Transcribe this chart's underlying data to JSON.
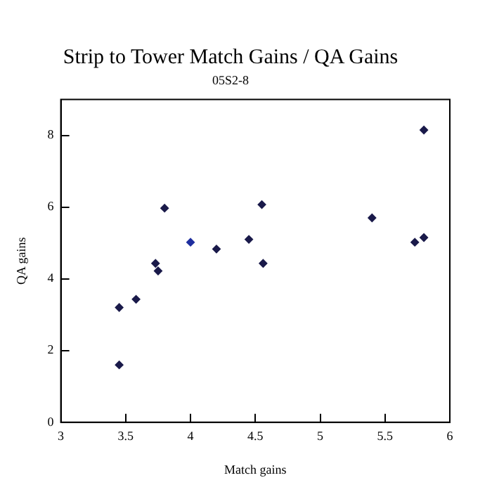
{
  "chart_data": {
    "type": "scatter",
    "title": "Strip to Tower Match Gains / QA Gains",
    "subtitle": "05S2-8",
    "xlabel": "Match gains",
    "ylabel": "QA gains",
    "x": [
      3.45,
      3.45,
      3.58,
      3.73,
      3.75,
      3.8,
      4.0,
      4.2,
      4.45,
      4.55,
      4.56,
      5.4,
      5.73,
      5.8,
      5.8
    ],
    "values": [
      3.2,
      1.6,
      3.43,
      4.43,
      4.22,
      5.97,
      5.02,
      4.83,
      5.1,
      6.07,
      4.43,
      5.7,
      5.02,
      5.15,
      8.15
    ],
    "colors": [
      "#1a1a4a",
      "#1a1a4a",
      "#1a1a4a",
      "#1a1a4a",
      "#1a1a4a",
      "#1a1a4a",
      "#1f2f9f",
      "#1a1a4a",
      "#1a1a4a",
      "#1a1a4a",
      "#1a1a4a",
      "#1a1a4a",
      "#1a1a4a",
      "#1a1a4a",
      "#1a1a4a"
    ],
    "marker": "diamond",
    "xlim": [
      3,
      6
    ],
    "xticks": [
      3,
      3.5,
      4,
      4.5,
      5,
      5.5,
      6
    ],
    "ylim": [
      0,
      9
    ],
    "yticks": [
      0,
      2,
      4,
      6,
      8
    ],
    "grid": false,
    "legend": false
  }
}
